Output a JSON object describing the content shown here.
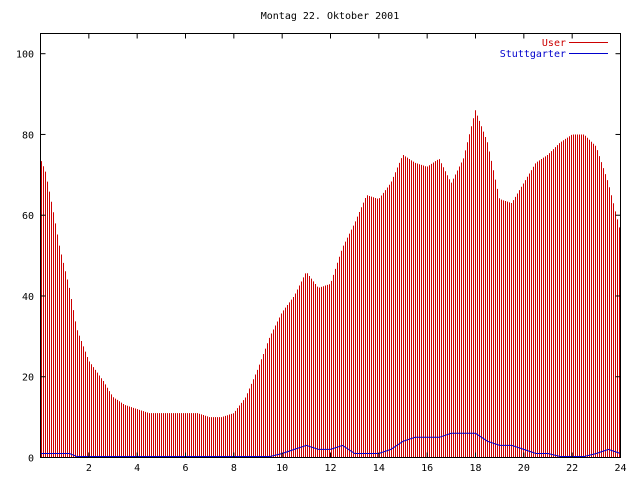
{
  "chart_data": {
    "type": "bar",
    "title": "Montag 22. Oktober 2001",
    "xlabel": "",
    "ylabel": "",
    "xlim": [
      0,
      24
    ],
    "ylim": [
      0,
      105
    ],
    "x_ticks": [
      2,
      4,
      6,
      8,
      10,
      12,
      14,
      16,
      18,
      20,
      22,
      24
    ],
    "y_ticks": [
      0,
      20,
      40,
      60,
      80,
      100
    ],
    "legend_position": "top-right",
    "colors": {
      "user": "#cc0000",
      "stuttgarter": "#0000cc",
      "axis": "#000000"
    },
    "x_knots": [
      0.0,
      0.2,
      0.5,
      0.8,
      1.2,
      1.5,
      2.0,
      2.6,
      3.0,
      3.5,
      4.0,
      4.5,
      5.0,
      5.5,
      6.0,
      6.5,
      7.0,
      7.5,
      8.0,
      8.5,
      9.0,
      9.5,
      10.0,
      10.5,
      11.0,
      11.5,
      12.0,
      12.5,
      13.0,
      13.5,
      14.0,
      14.5,
      15.0,
      15.5,
      16.0,
      16.5,
      17.0,
      17.5,
      18.0,
      18.5,
      19.0,
      19.5,
      20.0,
      20.5,
      21.0,
      21.5,
      22.0,
      22.5,
      23.0,
      23.5,
      24.0
    ],
    "series": [
      {
        "name": "User",
        "style": "impulses",
        "values": [
          74,
          71,
          62,
          52,
          42,
          32,
          24,
          19,
          15,
          13,
          12,
          11,
          11,
          11,
          11,
          11,
          10,
          10,
          11,
          15,
          22,
          30,
          36,
          40,
          46,
          42,
          43,
          52,
          58,
          65,
          64,
          68,
          75,
          73,
          72,
          74,
          68,
          74,
          86,
          78,
          64,
          63,
          68,
          73,
          75,
          78,
          80,
          80,
          77,
          68,
          56
        ]
      },
      {
        "name": "Stuttgarter",
        "style": "line",
        "values": [
          1,
          1,
          1,
          1,
          1,
          0,
          0,
          0,
          0,
          0,
          0,
          0,
          0,
          0,
          0,
          0,
          0,
          0,
          0,
          0,
          0,
          0,
          1,
          2,
          3,
          2,
          2,
          3,
          1,
          1,
          1,
          2,
          4,
          5,
          5,
          5,
          6,
          6,
          6,
          4,
          3,
          3,
          2,
          1,
          1,
          0,
          0,
          0,
          1,
          2,
          1
        ]
      }
    ]
  }
}
